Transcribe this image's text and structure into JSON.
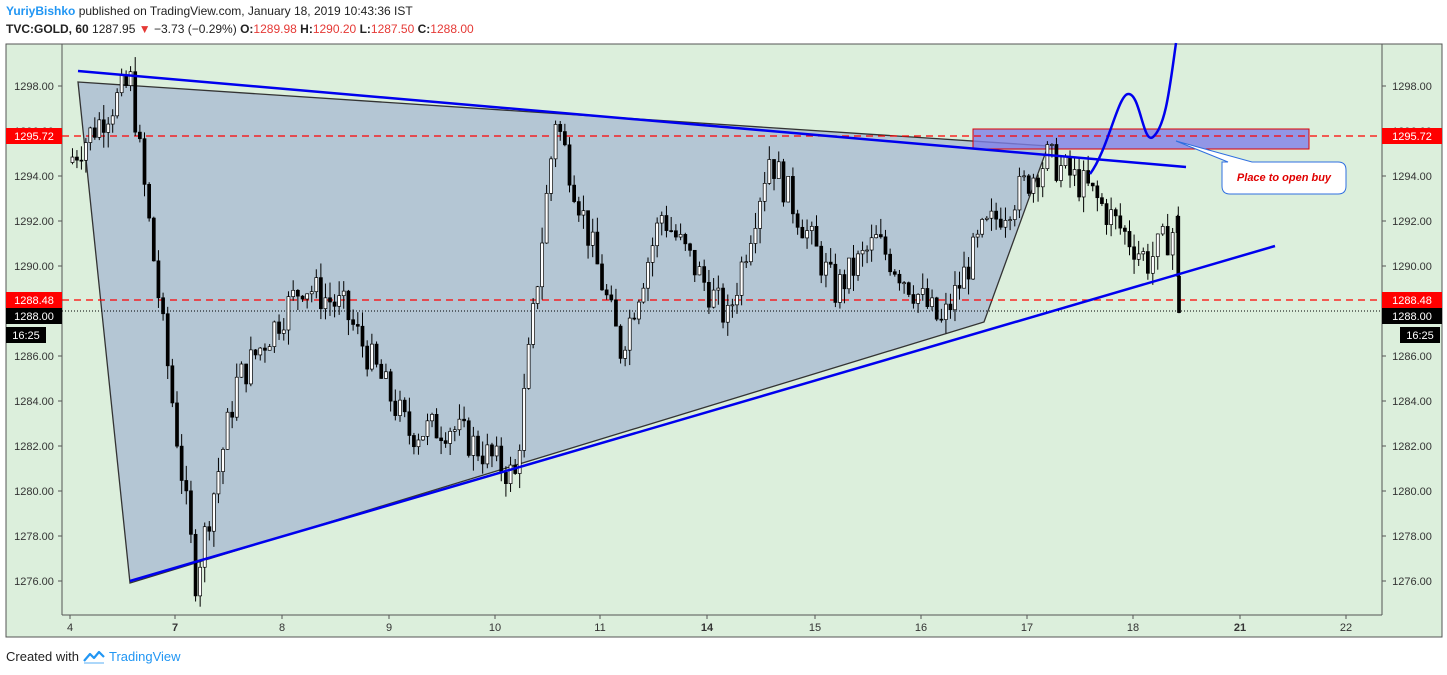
{
  "header": {
    "author": "YuriyBishko",
    "published": "published on TradingView.com, January 18, 2019 10:43:36 IST",
    "symbol": "TVC:GOLD, 60",
    "last": "1287.95",
    "change_arrow": "▼",
    "change": "−3.73 (−0.29%)",
    "o_label": "O:",
    "o": "1289.98",
    "h_label": "H:",
    "h": "1290.20",
    "l_label": "L:",
    "l": "1287.50",
    "c_label": "C:",
    "c": "1288.00"
  },
  "footer": {
    "created": "Created with",
    "brand": "TradingView"
  },
  "colors": {
    "plot_bg": "#dcefdc",
    "candle": "#000000",
    "trend": "#0000ee",
    "wedge_fill": "#b4c6d4",
    "level": "#ff0000",
    "zone": "#8080e8"
  },
  "chart_data": {
    "type": "candlestick",
    "ylim": [
      1275,
      1300
    ],
    "y_ticks": [
      "1298.00",
      "1296.00",
      "1294.00",
      "1292.00",
      "1290.00",
      "1288.00",
      "1286.00",
      "1284.00",
      "1282.00",
      "1280.00",
      "1278.00",
      "1276.00"
    ],
    "x_ticks": [
      "4",
      "7",
      "8",
      "9",
      "10",
      "11",
      "14",
      "15",
      "16",
      "17",
      "18",
      "21",
      "22"
    ],
    "levels": [
      {
        "label": "1295.72",
        "value": 1295.72,
        "style": "dashed-red"
      },
      {
        "label": "1288.48",
        "value": 1288.48,
        "style": "dashed-red"
      },
      {
        "label": "1288.00",
        "value": 1288.0,
        "style": "dotted-black"
      }
    ],
    "time_label": "16:25",
    "annotation": "Place to open buy",
    "price_path": [
      [
        "4",
        1294.6
      ],
      [
        "4",
        1298.2
      ],
      [
        "7",
        1276.1
      ],
      [
        "7",
        1284.8
      ],
      [
        "8",
        1289.2
      ],
      [
        "8",
        1288.1
      ],
      [
        "9",
        1282.6
      ],
      [
        "9",
        1282.9
      ],
      [
        "10",
        1280.6
      ],
      [
        "10",
        1296.6
      ],
      [
        "11",
        1286.3
      ],
      [
        "11",
        1292.3
      ],
      [
        "14",
        1287.6
      ],
      [
        "14",
        1294.9
      ],
      [
        "15",
        1288.9
      ],
      [
        "15",
        1291.1
      ],
      [
        "16",
        1287.4
      ],
      [
        "16",
        1291.4
      ],
      [
        "17",
        1294.8
      ],
      [
        "17",
        1293.4
      ],
      [
        "18",
        1290.2
      ],
      [
        "18",
        1291.8
      ],
      [
        "18",
        1287.95
      ]
    ]
  }
}
